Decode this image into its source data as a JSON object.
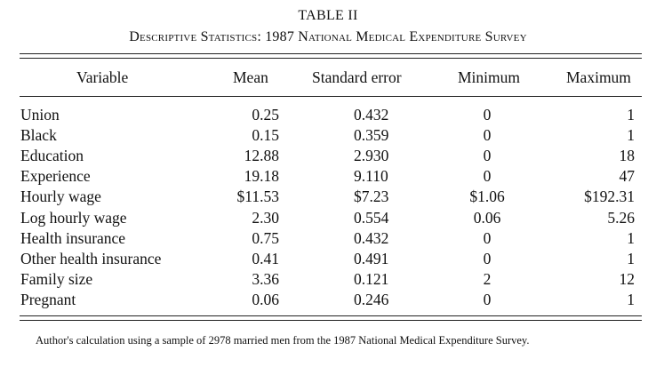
{
  "table": {
    "label": "TABLE II",
    "caption": "Descriptive Statistics: 1987 National Medical Expenditure Survey",
    "headers": [
      "Variable",
      "Mean",
      "Standard error",
      "Minimum",
      "Maximum"
    ],
    "rows": [
      {
        "variable": "Union",
        "mean": "0.25",
        "se": "0.432",
        "min": "0",
        "max": "1"
      },
      {
        "variable": "Black",
        "mean": "0.15",
        "se": "0.359",
        "min": "0",
        "max": "1"
      },
      {
        "variable": "Education",
        "mean": "12.88",
        "se": "2.930",
        "min": "0",
        "max": "18"
      },
      {
        "variable": "Experience",
        "mean": "19.18",
        "se": "9.110",
        "min": "0",
        "max": "47"
      },
      {
        "variable": "Hourly wage",
        "mean": "$11.53",
        "se": "$7.23",
        "min": "$1.06",
        "max": "$192.31"
      },
      {
        "variable": "Log hourly wage",
        "mean": "2.30",
        "se": "0.554",
        "min": "0.06",
        "max": "5.26"
      },
      {
        "variable": "Health insurance",
        "mean": "0.75",
        "se": "0.432",
        "min": "0",
        "max": "1"
      },
      {
        "variable": "Other health insurance",
        "mean": "0.41",
        "se": "0.491",
        "min": "0",
        "max": "1"
      },
      {
        "variable": "Family size",
        "mean": "3.36",
        "se": "0.121",
        "min": "2",
        "max": "12"
      },
      {
        "variable": "Pregnant",
        "mean": "0.06",
        "se": "0.246",
        "min": "0",
        "max": "1"
      }
    ],
    "note": "Author's calculation using a sample of 2978 married men from the 1987 National Medical Expenditure Survey."
  }
}
